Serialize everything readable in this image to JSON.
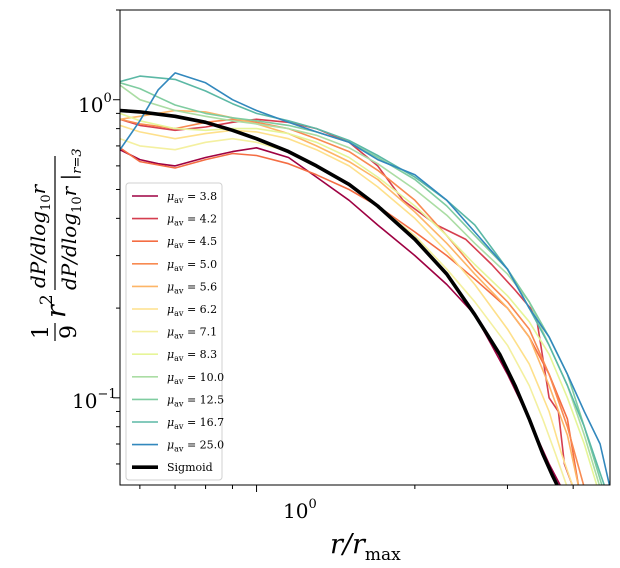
{
  "chart_data": {
    "type": "line",
    "title": "",
    "xlabel": "r/r_max",
    "xlabel_main": "r/r",
    "xlabel_sub": "max",
    "ylabel": "(1/9) r^2 (dP/dlog10 r) / (dP/dlog10 r |r=3)",
    "ylabel_parts": {
      "fraction_one": "1",
      "fraction_nine": "9",
      "r": "r",
      "r_exp": "2",
      "numerator": "dP/dlog",
      "numerator_sub": "10",
      "numerator_var": "r",
      "denominator": "dP/dlog",
      "denominator_sub": "10",
      "denominator_var": "r",
      "denominator_eval": "r=3"
    },
    "xscale": "log",
    "yscale": "log",
    "xlim": [
      0.55,
      4.7
    ],
    "ylim": [
      0.051,
      2.0
    ],
    "x_ticks": [
      {
        "value": 1,
        "base": "10",
        "exp": "0"
      }
    ],
    "y_ticks": [
      {
        "value": 1,
        "base": "10",
        "exp": "0"
      },
      {
        "value": 0.1,
        "base": "10",
        "exp": "−1"
      }
    ],
    "legend_position": "center-left",
    "series": [
      {
        "name": "μ_av = 3.8",
        "label_main": "μ",
        "label_sub": "av",
        "label_value": " = 3.8",
        "color": "#9e0142",
        "width": 1.6,
        "x": [
          0.55,
          0.6,
          0.65,
          0.7,
          0.8,
          0.9,
          1.0,
          1.15,
          1.3,
          1.5,
          1.7,
          2.0,
          2.3,
          2.6,
          2.8,
          3.0,
          3.2,
          3.4,
          3.6,
          3.8
        ],
        "y": [
          0.68,
          0.63,
          0.61,
          0.6,
          0.64,
          0.67,
          0.69,
          0.64,
          0.55,
          0.46,
          0.38,
          0.3,
          0.24,
          0.19,
          0.15,
          0.12,
          0.095,
          0.075,
          0.06,
          0.05
        ]
      },
      {
        "name": "μ_av = 4.2",
        "label_main": "μ",
        "label_sub": "av",
        "label_value": " = 4.2",
        "color": "#d53e4f",
        "width": 1.6,
        "x": [
          0.55,
          0.6,
          0.7,
          0.8,
          0.9,
          1.0,
          1.15,
          1.3,
          1.5,
          1.7,
          1.9,
          2.0,
          2.2,
          2.5,
          2.8,
          3.1,
          3.4,
          3.6,
          3.75,
          3.85,
          4.0
        ],
        "y": [
          0.86,
          0.82,
          0.79,
          0.81,
          0.84,
          0.86,
          0.84,
          0.8,
          0.72,
          0.6,
          0.46,
          0.43,
          0.38,
          0.34,
          0.28,
          0.23,
          0.19,
          0.1,
          0.09,
          0.06,
          0.05
        ]
      },
      {
        "name": "μ_av = 4.5",
        "label_main": "μ",
        "label_sub": "av",
        "label_value": " = 4.5",
        "color": "#f46d43",
        "width": 1.6,
        "x": [
          0.55,
          0.6,
          0.7,
          0.8,
          0.9,
          1.0,
          1.15,
          1.3,
          1.5,
          1.7,
          2.0,
          2.3,
          2.6,
          3.0,
          3.3,
          3.6,
          3.9,
          4.1
        ],
        "y": [
          0.69,
          0.62,
          0.59,
          0.63,
          0.66,
          0.65,
          0.61,
          0.56,
          0.5,
          0.44,
          0.36,
          0.3,
          0.25,
          0.2,
          0.16,
          0.12,
          0.085,
          0.05
        ]
      },
      {
        "name": "μ_av = 5.0",
        "label_main": "μ",
        "label_sub": "av",
        "label_value": " = 5.0",
        "color": "#fdae61",
        "width": 1.6,
        "color_override": "#f88a51",
        "x": [
          0.55,
          0.6,
          0.7,
          0.8,
          0.9,
          1.0,
          1.15,
          1.3,
          1.5,
          1.7,
          2.0,
          2.3,
          2.6,
          3.0,
          3.3,
          3.6,
          3.9,
          4.2
        ],
        "y": [
          0.86,
          0.83,
          0.8,
          0.84,
          0.86,
          0.84,
          0.8,
          0.74,
          0.67,
          0.58,
          0.46,
          0.35,
          0.27,
          0.21,
          0.17,
          0.12,
          0.08,
          0.05
        ]
      },
      {
        "name": "μ_av = 5.6",
        "label_main": "μ",
        "label_sub": "av",
        "label_value": " = 5.6",
        "color": "#fdb567",
        "width": 1.6,
        "x": [
          0.55,
          0.6,
          0.7,
          0.8,
          0.9,
          1.0,
          1.15,
          1.3,
          1.5,
          1.7,
          2.0,
          2.3,
          2.6,
          3.0,
          3.3,
          3.6,
          3.9,
          4.1
        ],
        "y": [
          0.86,
          0.88,
          0.92,
          0.91,
          0.87,
          0.83,
          0.77,
          0.7,
          0.62,
          0.54,
          0.42,
          0.33,
          0.26,
          0.2,
          0.16,
          0.11,
          0.075,
          0.05
        ]
      },
      {
        "name": "μ_av = 6.2",
        "label_main": "μ",
        "label_sub": "av",
        "label_value": " = 6.2",
        "color": "#fee08b",
        "width": 1.6,
        "x": [
          0.55,
          0.6,
          0.7,
          0.8,
          0.9,
          1.0,
          1.15,
          1.3,
          1.5,
          1.7,
          2.0,
          2.3,
          2.6,
          3.0,
          3.3,
          3.6,
          3.8,
          4.0
        ],
        "y": [
          0.82,
          0.78,
          0.74,
          0.77,
          0.79,
          0.78,
          0.74,
          0.68,
          0.6,
          0.51,
          0.4,
          0.31,
          0.24,
          0.17,
          0.13,
          0.09,
          0.065,
          0.05
        ]
      },
      {
        "name": "μ_av = 7.1",
        "label_main": "μ",
        "label_sub": "av",
        "label_value": " = 7.1",
        "color": "#ffffbf",
        "width": 1.6,
        "color_override": "#f4f0a0",
        "x": [
          0.55,
          0.6,
          0.7,
          0.8,
          0.9,
          1.0,
          1.15,
          1.3,
          1.5,
          1.7,
          2.0,
          2.3,
          2.6,
          3.0,
          3.3,
          3.5,
          3.7,
          3.9
        ],
        "y": [
          0.74,
          0.7,
          0.68,
          0.72,
          0.74,
          0.72,
          0.67,
          0.6,
          0.52,
          0.44,
          0.35,
          0.27,
          0.21,
          0.15,
          0.11,
          0.085,
          0.065,
          0.05
        ]
      },
      {
        "name": "μ_av = 8.3",
        "label_main": "μ",
        "label_sub": "av",
        "label_value": " = 8.3",
        "color": "#e6f598",
        "width": 1.6,
        "x": [
          0.55,
          0.6,
          0.7,
          0.8,
          0.9,
          1.0,
          1.15,
          1.3,
          1.5,
          1.7,
          2.0,
          2.3,
          2.6,
          3.0,
          3.3,
          3.6,
          3.9,
          4.2,
          4.45
        ],
        "y": [
          0.9,
          0.85,
          0.8,
          0.79,
          0.8,
          0.8,
          0.77,
          0.72,
          0.64,
          0.55,
          0.44,
          0.35,
          0.28,
          0.22,
          0.18,
          0.14,
          0.1,
          0.07,
          0.05
        ]
      },
      {
        "name": "μ_av = 10.0",
        "label_main": "μ",
        "label_sub": "av",
        "label_value": " = 10.0",
        "color": "#abdda4",
        "width": 1.6,
        "x": [
          0.55,
          0.6,
          0.7,
          0.8,
          0.9,
          1.0,
          1.15,
          1.3,
          1.5,
          1.7,
          2.0,
          2.3,
          2.6,
          3.0,
          3.3,
          3.6,
          3.9,
          4.2,
          4.5
        ],
        "y": [
          1.12,
          1.0,
          0.92,
          0.88,
          0.85,
          0.83,
          0.8,
          0.76,
          0.69,
          0.61,
          0.5,
          0.41,
          0.33,
          0.26,
          0.21,
          0.15,
          0.11,
          0.075,
          0.05
        ]
      },
      {
        "name": "μ_av = 12.5",
        "label_main": "μ",
        "label_sub": "av",
        "label_value": " = 12.5",
        "color": "#66c2a5",
        "width": 1.6,
        "color_override": "#7fcca0",
        "x": [
          0.55,
          0.6,
          0.65,
          0.7,
          0.8,
          0.9,
          1.0,
          1.15,
          1.3,
          1.5,
          1.7,
          2.0,
          2.3,
          2.6,
          3.0,
          3.3,
          3.6,
          3.9,
          4.2,
          4.55
        ],
        "y": [
          1.14,
          1.09,
          1.02,
          0.96,
          0.9,
          0.87,
          0.85,
          0.82,
          0.78,
          0.72,
          0.64,
          0.54,
          0.44,
          0.35,
          0.27,
          0.21,
          0.16,
          0.12,
          0.08,
          0.05
        ]
      },
      {
        "name": "μ_av = 16.7",
        "label_main": "μ",
        "label_sub": "av",
        "label_value": " = 16.7",
        "color": "#3ba99b",
        "width": 1.6,
        "color_override": "#5bb8a5",
        "x": [
          0.55,
          0.6,
          0.7,
          0.8,
          0.9,
          1.0,
          1.15,
          1.3,
          1.5,
          1.7,
          2.0,
          2.3,
          2.6,
          3.0,
          3.3,
          3.6,
          3.9,
          4.2,
          4.6
        ],
        "y": [
          1.15,
          1.2,
          1.17,
          1.07,
          0.97,
          0.9,
          0.85,
          0.8,
          0.73,
          0.65,
          0.55,
          0.46,
          0.38,
          0.27,
          0.2,
          0.15,
          0.11,
          0.08,
          0.05
        ]
      },
      {
        "name": "μ_av = 25.0",
        "label_main": "μ",
        "label_sub": "av",
        "label_value": " = 25.0",
        "color": "#3288bd",
        "width": 1.6,
        "x": [
          0.55,
          0.6,
          0.65,
          0.7,
          0.8,
          0.9,
          1.0,
          1.15,
          1.3,
          1.5,
          1.7,
          2.0,
          2.3,
          2.6,
          3.0,
          3.3,
          3.6,
          3.9,
          4.2,
          4.5,
          4.7
        ],
        "y": [
          0.68,
          0.85,
          1.08,
          1.23,
          1.14,
          1.0,
          0.92,
          0.84,
          0.78,
          0.72,
          0.63,
          0.56,
          0.46,
          0.36,
          0.27,
          0.2,
          0.16,
          0.12,
          0.09,
          0.07,
          0.05
        ]
      },
      {
        "name": "Sigmoid",
        "label_main": "Sigmoid",
        "label_sub": "",
        "label_value": "",
        "color": "#000000",
        "width": 3.6,
        "x": [
          0.55,
          0.6,
          0.7,
          0.8,
          0.9,
          1.0,
          1.15,
          1.3,
          1.5,
          1.7,
          2.0,
          2.3,
          2.6,
          2.9,
          3.1,
          3.3,
          3.5,
          3.65,
          3.75
        ],
        "y": [
          0.92,
          0.91,
          0.88,
          0.84,
          0.79,
          0.74,
          0.67,
          0.6,
          0.52,
          0.44,
          0.34,
          0.26,
          0.19,
          0.14,
          0.11,
          0.085,
          0.065,
          0.055,
          0.05
        ]
      }
    ]
  }
}
